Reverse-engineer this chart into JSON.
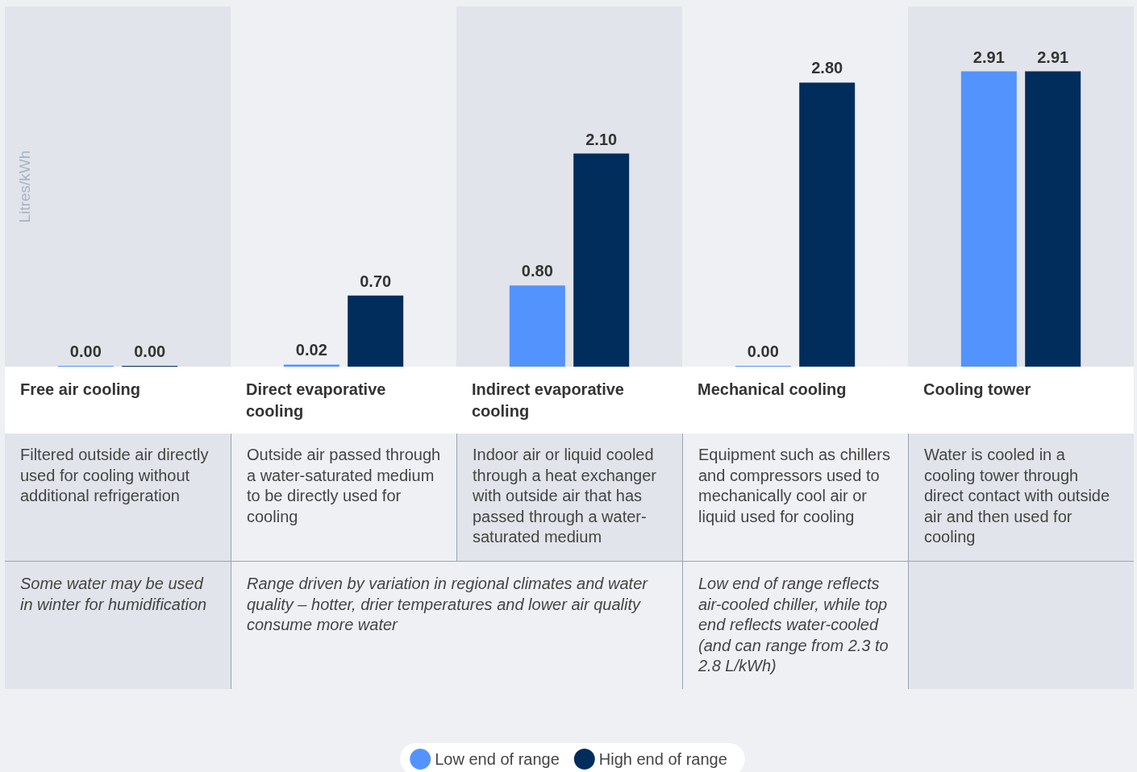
{
  "chart_data": {
    "type": "bar",
    "ylabel": "Litres/kWh",
    "categories": [
      "Free air cooling",
      "Direct evaporative cooling",
      "Indirect evaporative cooling",
      "Mechanical cooling",
      "Cooling tower"
    ],
    "series": [
      {
        "name": "Low end of range",
        "color": "#5393fe",
        "values": [
          0,
          0.02,
          0.8,
          0,
          2.91
        ],
        "value_labels": [
          "0.00",
          "0.02",
          "0.80",
          "0.00",
          "2.91"
        ]
      },
      {
        "name": "High end of range",
        "color": "#002d5c",
        "values": [
          0,
          0.7,
          2.1,
          2.8,
          2.91
        ],
        "value_labels": [
          "0.00",
          "0.70",
          "2.10",
          "2.80",
          "2.91"
        ]
      }
    ],
    "annotations": [
      "Filtered outside air directly used for cooling without additional refrigeration",
      "Outside air passed through a water-saturated medium to be directly used for cooling",
      "Indoor air or liquid cooled through a heat exchanger with outside air that has passed through a water-saturated medium",
      "Equipment such as chillers and compressors used to mechanically cool air or liquid used for cooling",
      "Water is cooled in a cooling tower through direct contact with outside air and then used for cooling",
      "Some water may be used in winter for humidification",
      "Range driven by variation in regional climates and water quality – hotter, drier temperatures and lower air quality consume more water",
      "Low end of range reflects air-cooled chiller, while top end reflects water-cooled (and can range from 2.3 to 2.8 L/kWh)"
    ],
    "tick_labels": "x",
    "grid": false,
    "legend": "bottom"
  }
}
